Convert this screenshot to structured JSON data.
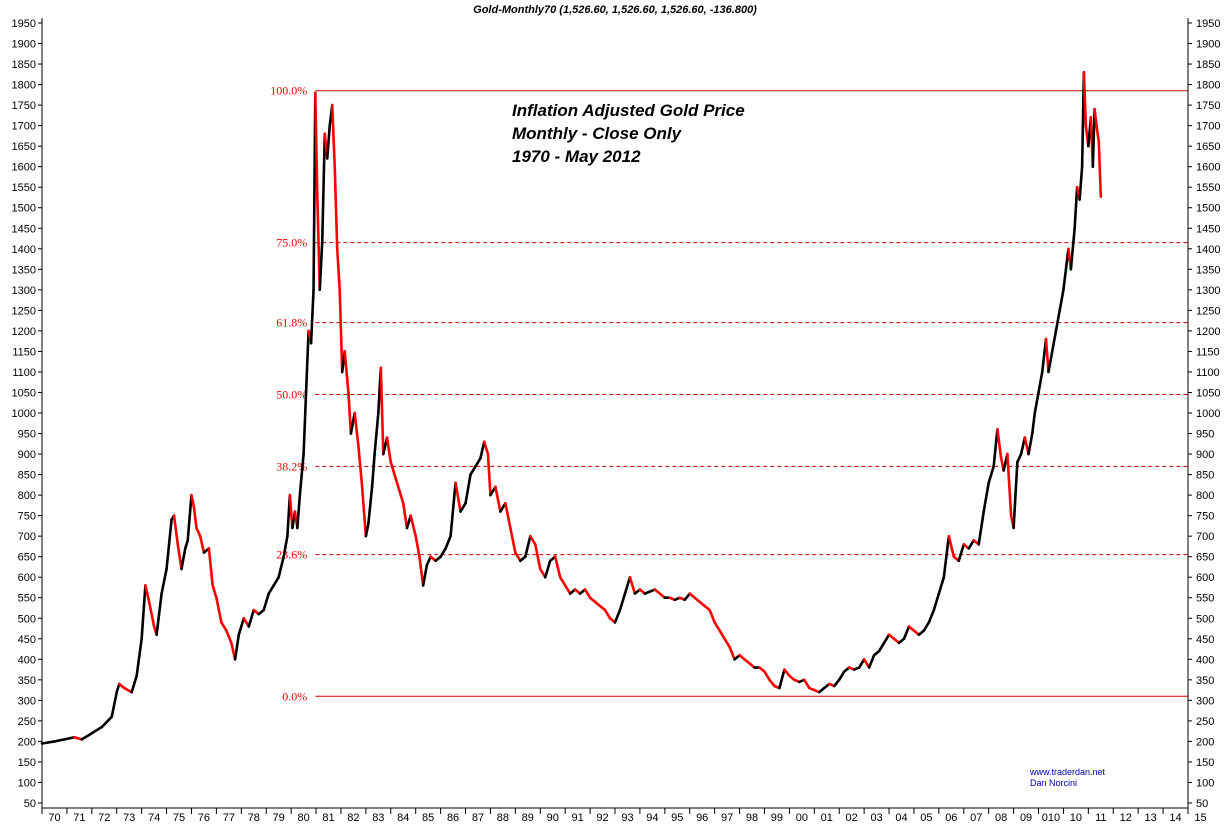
{
  "header": {
    "text": "Gold-Monthly70 (1,526.60, 1,526.60, 1,526.60, -136.800)"
  },
  "title_lines": [
    "Inflation Adjusted Gold Price",
    "Monthly - Close Only",
    "1970 - May 2012"
  ],
  "watermark": [
    "www.traderdan.net",
    "Dan Norcini"
  ],
  "colors": {
    "up": "#000000",
    "down": "#ff0000",
    "fib": "#cc0000",
    "axis": "#000000"
  },
  "chart_data": {
    "type": "line",
    "ylim": [
      50,
      1950
    ],
    "y_ticks": [
      50,
      100,
      150,
      200,
      250,
      300,
      350,
      400,
      450,
      500,
      550,
      600,
      650,
      700,
      750,
      800,
      850,
      900,
      950,
      1000,
      1050,
      1100,
      1150,
      1200,
      1250,
      1300,
      1350,
      1400,
      1450,
      1500,
      1550,
      1600,
      1650,
      1700,
      1750,
      1800,
      1850,
      1900,
      1950
    ],
    "x_ticks": [
      "70",
      "71",
      "72",
      "73",
      "74",
      "75",
      "76",
      "77",
      "78",
      "79",
      "80",
      "81",
      "82",
      "83",
      "84",
      "85",
      "86",
      "87",
      "88",
      "89",
      "90",
      "91",
      "92",
      "93",
      "94",
      "95",
      "96",
      "97",
      "98",
      "99",
      "00",
      "01",
      "02",
      "03",
      "04",
      "05",
      "06",
      "07",
      "08",
      "09",
      "010",
      "10",
      "11",
      "12",
      "13",
      "14",
      "15"
    ],
    "x_range": [
      1970,
      2016
    ],
    "fib_levels": [
      {
        "label": "100.0%",
        "value": 1785
      },
      {
        "label": "75.0%",
        "value": 1415
      },
      {
        "label": "61.8%",
        "value": 1220
      },
      {
        "label": "50.0%",
        "value": 1045
      },
      {
        "label": "38.2%",
        "value": 870
      },
      {
        "label": "23.6%",
        "value": 655
      },
      {
        "label": "0.0%",
        "value": 310
      }
    ],
    "series": [
      {
        "values": [
          [
            1970.0,
            195
          ],
          [
            1970.5,
            200
          ],
          [
            1970.9,
            205
          ],
          [
            1971.3,
            210
          ],
          [
            1971.6,
            205
          ],
          [
            1972.0,
            220
          ],
          [
            1972.4,
            235
          ],
          [
            1972.8,
            260
          ],
          [
            1973.0,
            320
          ],
          [
            1973.1,
            340
          ],
          [
            1973.3,
            330
          ],
          [
            1973.6,
            320
          ],
          [
            1973.8,
            360
          ],
          [
            1974.0,
            450
          ],
          [
            1974.15,
            580
          ],
          [
            1974.3,
            540
          ],
          [
            1974.5,
            480
          ],
          [
            1974.6,
            460
          ],
          [
            1974.8,
            560
          ],
          [
            1975.0,
            620
          ],
          [
            1975.2,
            740
          ],
          [
            1975.3,
            750
          ],
          [
            1975.45,
            680
          ],
          [
            1975.6,
            620
          ],
          [
            1975.75,
            670
          ],
          [
            1975.85,
            690
          ],
          [
            1976.0,
            800
          ],
          [
            1976.1,
            770
          ],
          [
            1976.2,
            720
          ],
          [
            1976.35,
            700
          ],
          [
            1976.5,
            660
          ],
          [
            1976.7,
            670
          ],
          [
            1976.85,
            580
          ],
          [
            1977.0,
            550
          ],
          [
            1977.2,
            490
          ],
          [
            1977.4,
            470
          ],
          [
            1977.6,
            440
          ],
          [
            1977.75,
            400
          ],
          [
            1977.9,
            460
          ],
          [
            1978.1,
            500
          ],
          [
            1978.3,
            480
          ],
          [
            1978.5,
            520
          ],
          [
            1978.7,
            510
          ],
          [
            1978.9,
            520
          ],
          [
            1979.1,
            560
          ],
          [
            1979.3,
            580
          ],
          [
            1979.5,
            600
          ],
          [
            1979.7,
            650
          ],
          [
            1979.85,
            700
          ],
          [
            1979.95,
            800
          ],
          [
            1980.05,
            720
          ],
          [
            1980.15,
            760
          ],
          [
            1980.25,
            720
          ],
          [
            1980.35,
            800
          ],
          [
            1980.5,
            900
          ],
          [
            1980.6,
            1050
          ],
          [
            1980.7,
            1200
          ],
          [
            1980.8,
            1170
          ],
          [
            1980.9,
            1300
          ],
          [
            1980.97,
            1780
          ],
          [
            1981.05,
            1530
          ],
          [
            1981.15,
            1300
          ],
          [
            1981.25,
            1420
          ],
          [
            1981.35,
            1680
          ],
          [
            1981.45,
            1620
          ],
          [
            1981.55,
            1700
          ],
          [
            1981.65,
            1750
          ],
          [
            1981.75,
            1600
          ],
          [
            1981.85,
            1400
          ],
          [
            1981.95,
            1300
          ],
          [
            1982.05,
            1100
          ],
          [
            1982.15,
            1150
          ],
          [
            1982.3,
            1050
          ],
          [
            1982.4,
            950
          ],
          [
            1982.55,
            1000
          ],
          [
            1982.7,
            920
          ],
          [
            1982.85,
            820
          ],
          [
            1983.0,
            700
          ],
          [
            1983.1,
            730
          ],
          [
            1983.25,
            820
          ],
          [
            1983.35,
            900
          ],
          [
            1983.5,
            1000
          ],
          [
            1983.6,
            1110
          ],
          [
            1983.7,
            900
          ],
          [
            1983.85,
            940
          ],
          [
            1984.0,
            880
          ],
          [
            1984.2,
            840
          ],
          [
            1984.35,
            810
          ],
          [
            1984.5,
            780
          ],
          [
            1984.65,
            720
          ],
          [
            1984.8,
            750
          ],
          [
            1985.0,
            700
          ],
          [
            1985.15,
            650
          ],
          [
            1985.3,
            580
          ],
          [
            1985.45,
            630
          ],
          [
            1985.6,
            650
          ],
          [
            1985.8,
            640
          ],
          [
            1986.0,
            650
          ],
          [
            1986.2,
            670
          ],
          [
            1986.4,
            700
          ],
          [
            1986.6,
            830
          ],
          [
            1986.8,
            760
          ],
          [
            1987.0,
            780
          ],
          [
            1987.2,
            850
          ],
          [
            1987.4,
            870
          ],
          [
            1987.6,
            890
          ],
          [
            1987.75,
            930
          ],
          [
            1987.9,
            900
          ],
          [
            1988.0,
            800
          ],
          [
            1988.2,
            820
          ],
          [
            1988.4,
            760
          ],
          [
            1988.6,
            780
          ],
          [
            1988.8,
            720
          ],
          [
            1989.0,
            660
          ],
          [
            1989.2,
            640
          ],
          [
            1989.4,
            650
          ],
          [
            1989.6,
            700
          ],
          [
            1989.8,
            680
          ],
          [
            1990.0,
            620
          ],
          [
            1990.2,
            600
          ],
          [
            1990.4,
            640
          ],
          [
            1990.6,
            650
          ],
          [
            1990.8,
            600
          ],
          [
            1991.0,
            580
          ],
          [
            1991.2,
            560
          ],
          [
            1991.4,
            570
          ],
          [
            1991.6,
            560
          ],
          [
            1991.8,
            570
          ],
          [
            1992.0,
            550
          ],
          [
            1992.2,
            540
          ],
          [
            1992.4,
            530
          ],
          [
            1992.6,
            520
          ],
          [
            1992.8,
            500
          ],
          [
            1993.0,
            490
          ],
          [
            1993.2,
            520
          ],
          [
            1993.4,
            560
          ],
          [
            1993.6,
            600
          ],
          [
            1993.8,
            560
          ],
          [
            1994.0,
            570
          ],
          [
            1994.2,
            560
          ],
          [
            1994.4,
            565
          ],
          [
            1994.6,
            570
          ],
          [
            1994.8,
            560
          ],
          [
            1995.0,
            550
          ],
          [
            1995.2,
            550
          ],
          [
            1995.4,
            545
          ],
          [
            1995.6,
            550
          ],
          [
            1995.8,
            545
          ],
          [
            1996.0,
            560
          ],
          [
            1996.2,
            550
          ],
          [
            1996.4,
            540
          ],
          [
            1996.6,
            530
          ],
          [
            1996.8,
            520
          ],
          [
            1997.0,
            490
          ],
          [
            1997.2,
            470
          ],
          [
            1997.4,
            450
          ],
          [
            1997.6,
            430
          ],
          [
            1997.8,
            400
          ],
          [
            1998.0,
            410
          ],
          [
            1998.2,
            400
          ],
          [
            1998.4,
            390
          ],
          [
            1998.6,
            380
          ],
          [
            1998.8,
            380
          ],
          [
            1999.0,
            370
          ],
          [
            1999.2,
            350
          ],
          [
            1999.4,
            335
          ],
          [
            1999.6,
            330
          ],
          [
            1999.8,
            375
          ],
          [
            2000.0,
            360
          ],
          [
            2000.2,
            350
          ],
          [
            2000.4,
            345
          ],
          [
            2000.6,
            350
          ],
          [
            2000.8,
            330
          ],
          [
            2001.0,
            325
          ],
          [
            2001.2,
            320
          ],
          [
            2001.4,
            330
          ],
          [
            2001.6,
            340
          ],
          [
            2001.8,
            335
          ],
          [
            2002.0,
            350
          ],
          [
            2002.2,
            370
          ],
          [
            2002.4,
            380
          ],
          [
            2002.6,
            375
          ],
          [
            2002.8,
            380
          ],
          [
            2003.0,
            400
          ],
          [
            2003.2,
            380
          ],
          [
            2003.4,
            410
          ],
          [
            2003.6,
            420
          ],
          [
            2003.8,
            440
          ],
          [
            2004.0,
            460
          ],
          [
            2004.2,
            450
          ],
          [
            2004.4,
            440
          ],
          [
            2004.6,
            450
          ],
          [
            2004.8,
            480
          ],
          [
            2005.0,
            470
          ],
          [
            2005.2,
            460
          ],
          [
            2005.4,
            470
          ],
          [
            2005.6,
            490
          ],
          [
            2005.8,
            520
          ],
          [
            2006.0,
            560
          ],
          [
            2006.2,
            600
          ],
          [
            2006.4,
            700
          ],
          [
            2006.6,
            650
          ],
          [
            2006.8,
            640
          ],
          [
            2007.0,
            680
          ],
          [
            2007.2,
            670
          ],
          [
            2007.4,
            690
          ],
          [
            2007.6,
            680
          ],
          [
            2007.8,
            760
          ],
          [
            2008.0,
            830
          ],
          [
            2008.2,
            870
          ],
          [
            2008.35,
            960
          ],
          [
            2008.5,
            890
          ],
          [
            2008.6,
            860
          ],
          [
            2008.75,
            900
          ],
          [
            2008.9,
            750
          ],
          [
            2009.0,
            720
          ],
          [
            2009.15,
            880
          ],
          [
            2009.3,
            900
          ],
          [
            2009.45,
            940
          ],
          [
            2009.6,
            900
          ],
          [
            2009.75,
            950
          ],
          [
            2009.85,
            1000
          ],
          [
            2010.0,
            1050
          ],
          [
            2010.15,
            1100
          ],
          [
            2010.3,
            1180
          ],
          [
            2010.4,
            1100
          ],
          [
            2010.55,
            1150
          ],
          [
            2010.7,
            1200
          ],
          [
            2010.85,
            1250
          ],
          [
            2011.0,
            1300
          ],
          [
            2011.1,
            1350
          ],
          [
            2011.2,
            1400
          ],
          [
            2011.3,
            1350
          ],
          [
            2011.45,
            1450
          ],
          [
            2011.55,
            1550
          ],
          [
            2011.65,
            1520
          ],
          [
            2011.75,
            1600
          ],
          [
            2011.82,
            1830
          ],
          [
            2011.9,
            1700
          ],
          [
            2012.0,
            1650
          ],
          [
            2012.1,
            1720
          ],
          [
            2012.18,
            1600
          ],
          [
            2012.25,
            1740
          ],
          [
            2012.33,
            1700
          ],
          [
            2012.42,
            1660
          ],
          [
            2012.5,
            1527
          ]
        ]
      }
    ]
  }
}
